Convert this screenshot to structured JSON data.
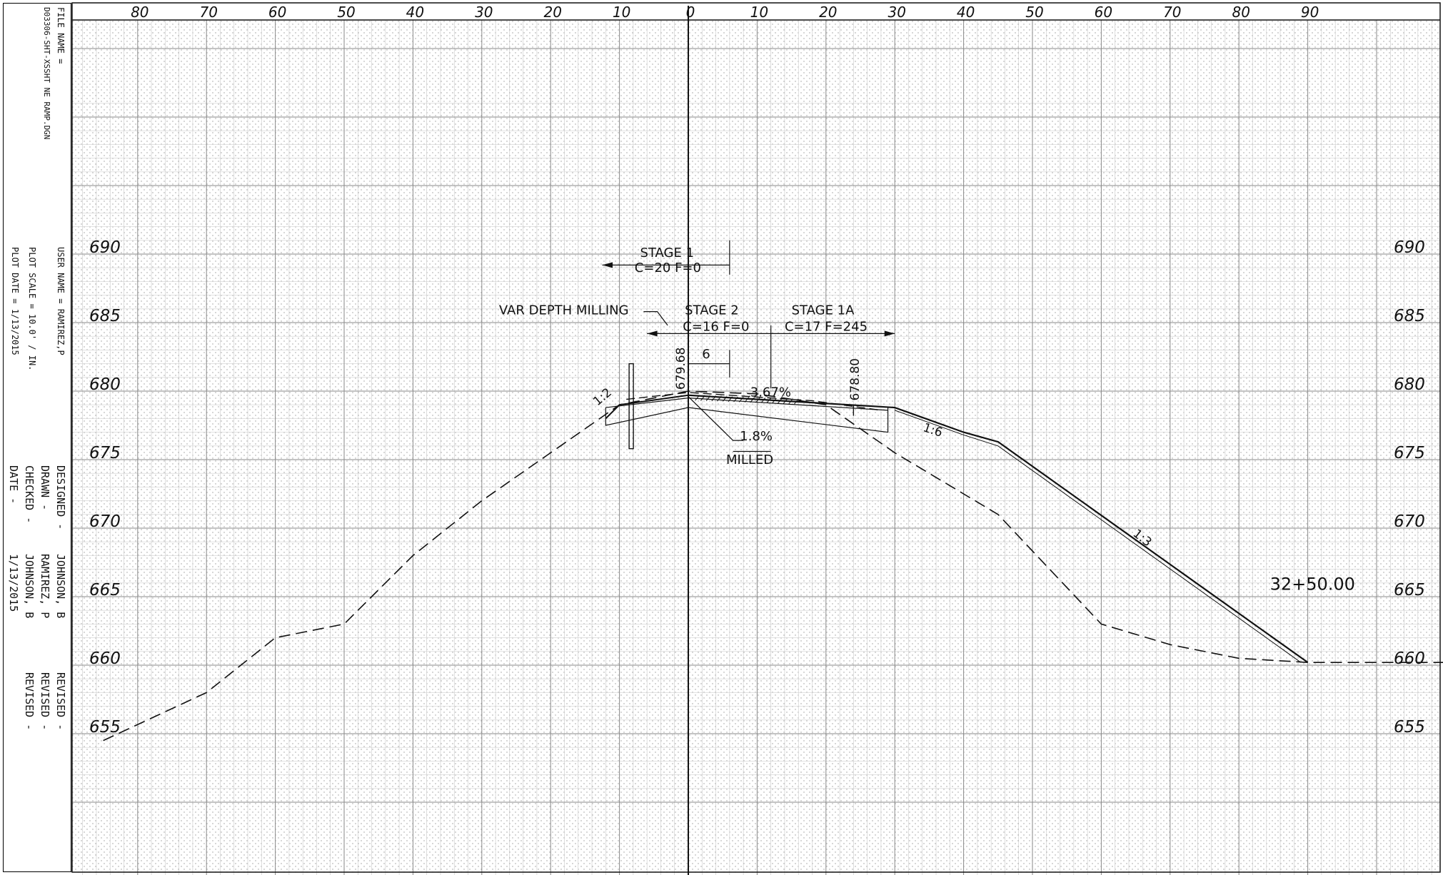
{
  "title_block": {
    "file_name_label": "FILE NAME =",
    "file_name_value": "D03306-SHT-XSSHT NE RAMP.DGN",
    "user_name": "USER NAME  =  RAMIREZ,P",
    "plot_scale": "PLOT SCALE = 10.0' / IN.",
    "plot_date": "PLOT DATE  = 1/13/2015",
    "designed_label": "DESIGNED  -",
    "designed_value": "JOHNSON, B",
    "drawn_label": "DRAWN     -",
    "drawn_value": "RAMIREZ, P",
    "checked_label": "CHECKED   -",
    "checked_value": "JOHNSON, B",
    "date_label": "DATE      -",
    "date_value": "1/13/2015",
    "revised_1": "REVISED   -",
    "revised_2": "REVISED   -",
    "revised_3": "REVISED   -"
  },
  "offset_labels": [
    "80",
    "70",
    "60",
    "50",
    "40",
    "30",
    "20",
    "10",
    "0",
    "10",
    "20",
    "30",
    "40",
    "50",
    "60",
    "70",
    "80",
    "90"
  ],
  "elevation_labels": [
    "690",
    "685",
    "680",
    "675",
    "670",
    "665",
    "660",
    "655"
  ],
  "station": "32+50.00",
  "annotations": {
    "stage1": "STAGE 1",
    "stage1_cf": "C=20  F=0",
    "stage2": "STAGE 2",
    "stage2_cf": "C=16  F=0",
    "stage1a": "STAGE 1A",
    "stage1a_cf": "C=17  F=245",
    "milling": "VAR DEPTH MILLING",
    "dim6": "6",
    "elev_left": "679.68",
    "elev_right": "678.80",
    "slope_pct": "3.67%",
    "cross_slope": "1.8%",
    "milled": "MILLED",
    "slope_left": "1:2",
    "slope_right1": "1:6",
    "slope_right2": "1:3"
  },
  "chart_data": {
    "type": "diagram",
    "offset_range": [
      -90,
      110
    ],
    "elevation_range": [
      650,
      700
    ],
    "existing_ground": [
      [
        -85,
        654.5
      ],
      [
        -70,
        658
      ],
      [
        -60,
        662
      ],
      [
        -50,
        663
      ],
      [
        -40,
        668
      ],
      [
        -30,
        672
      ],
      [
        -20,
        675.5
      ],
      [
        -10,
        679
      ],
      [
        0,
        680
      ],
      [
        10,
        679.8
      ],
      [
        20,
        679
      ],
      [
        30,
        675.5
      ],
      [
        40,
        672.5
      ],
      [
        45,
        671
      ],
      [
        60,
        663
      ],
      [
        70,
        661.5
      ],
      [
        80,
        660.5
      ],
      [
        90,
        660.2
      ],
      [
        110,
        660.2
      ]
    ],
    "proposed_left": [
      [
        -12,
        678
      ],
      [
        -10,
        679
      ],
      [
        0,
        679.7
      ]
    ],
    "proposed_right": [
      [
        0,
        679.7
      ],
      [
        30,
        678.8
      ],
      [
        40,
        677
      ],
      [
        45,
        676.3
      ],
      [
        90,
        660.2
      ]
    ]
  },
  "colors": {
    "line": "#111111",
    "grid_major": "#8a8a8a",
    "grid_minor": "#c8c8c8"
  }
}
